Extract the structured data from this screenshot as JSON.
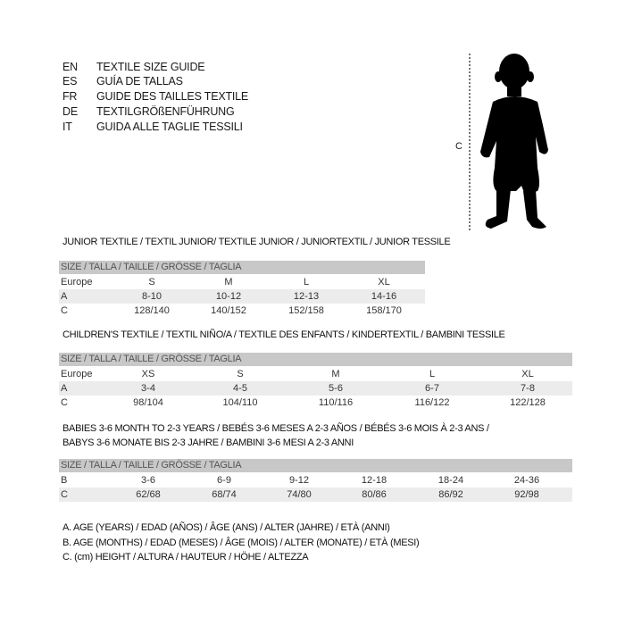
{
  "languages": [
    {
      "code": "EN",
      "text": "TEXTILE SIZE GUIDE"
    },
    {
      "code": "ES",
      "text": "GUÍA DE TALLAS"
    },
    {
      "code": "FR",
      "text": "GUIDE DES TAILLES TEXTILE"
    },
    {
      "code": "DE",
      "text": "TEXTILGRÖßENFÜHRUNG"
    },
    {
      "code": "IT",
      "text": "GUIDA ALLE TAGLIE TESSILI"
    }
  ],
  "figure": {
    "measure_label": "C",
    "icon": "child-silhouette"
  },
  "tables": [
    {
      "title": [
        "JUNIOR TEXTILE / TEXTIL JUNIOR/ TEXTILE JUNIOR / JUNIORTEXTIL / JUNIOR TESSILE"
      ],
      "header": "SIZE / TALLA / TAILLE / GRÖSSE / TAGLIA",
      "rows": [
        {
          "label": "Europe",
          "values": [
            "S",
            "M",
            "L",
            "XL"
          ]
        },
        {
          "label": "A",
          "values": [
            "8-10",
            "10-12",
            "12-13",
            "14-16"
          ]
        },
        {
          "label": "C",
          "values": [
            "128/140",
            "140/152",
            "152/158",
            "158/170"
          ]
        }
      ]
    },
    {
      "title": [
        "CHILDREN'S TEXTILE / TEXTIL NIÑO/A / TEXTILE DES ENFANTS / KINDERTEXTIL / BAMBINI TESSILE"
      ],
      "header": "SIZE / TALLA / TAILLE / GRÖSSE / TAGLIA",
      "rows": [
        {
          "label": "Europe",
          "values": [
            "XS",
            "S",
            "M",
            "L",
            "XL"
          ]
        },
        {
          "label": "A",
          "values": [
            "3-4",
            "4-5",
            "5-6",
            "6-7",
            "7-8"
          ]
        },
        {
          "label": "C",
          "values": [
            "98/104",
            "104/110",
            "110/116",
            "116/122",
            "122/128"
          ]
        }
      ]
    },
    {
      "title": [
        "BABIES 3-6 MONTH TO 2-3 YEARS / BEBÉS 3-6 MESES A 2-3 AÑOS / BÉBÉS 3-6 MOIS À 2-3 ANS /",
        "BABYS 3-6 MONATE BIS 2-3 JAHRE / BAMBINI 3-6 MESI A 2-3 ANNI"
      ],
      "header": "SIZE / TALLA / TAILLE / GRÖSSE / TAGLIA",
      "rows": [
        {
          "label": "B",
          "values": [
            "3-6",
            "6-9",
            "9-12",
            "12-18",
            "18-24",
            "24-36"
          ]
        },
        {
          "label": "C",
          "values": [
            "62/68",
            "68/74",
            "74/80",
            "80/86",
            "86/92",
            "92/98"
          ]
        }
      ]
    }
  ],
  "legend": [
    "A. AGE (YEARS) / EDAD (AÑOS) / ÂGE (ANS) / ALTER (JAHRE) / ETÀ (ANNI)",
    "B. AGE (MONTHS) / EDAD (MESES) / ÂGE (MOIS) / ALTER (MONATE) / ETÀ (MESI)",
    "C. (cm) HEIGHT / ALTURA / HAUTEUR / HÖHE / ALTEZZA"
  ]
}
